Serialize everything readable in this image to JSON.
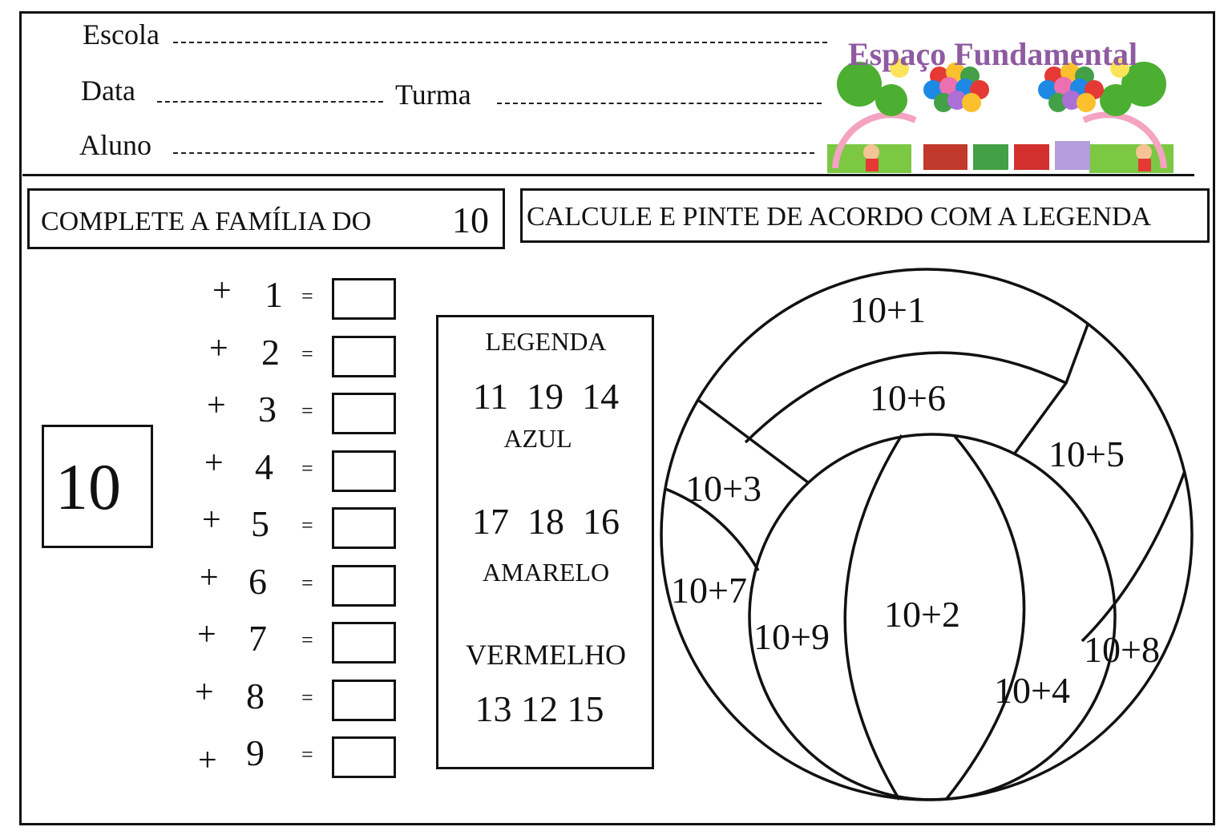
{
  "header": {
    "escola_label": "Escola",
    "data_label": "Data",
    "turma_label": "Turma",
    "aluno_label": "Aluno",
    "logo_text": "Espaço Fundamental"
  },
  "left_section": {
    "title": "COMPLETE A FAMÍLIA DO",
    "title_number": "10",
    "base_number": "10",
    "plus_sign": "+",
    "equals_sign": "=",
    "addends": [
      "1",
      "2",
      "3",
      "4",
      "5",
      "6",
      "7",
      "8",
      "9"
    ]
  },
  "right_section": {
    "title": "CALCULE E PINTE DE ACORDO COM A LEGENDA",
    "legend": {
      "heading": "LEGENDA",
      "groups": [
        {
          "numbers": "11  19  14",
          "color_name": "AZUL",
          "color": "#1e6fd9"
        },
        {
          "numbers": "17  18  16",
          "color_name": "AMARELO",
          "color": "#f2c500"
        },
        {
          "numbers": "13 12 15",
          "color_name": "VERMELHO",
          "color": "#d92020"
        }
      ]
    },
    "ball_sections": [
      "10+1",
      "10+6",
      "10+5",
      "10+3",
      "10+7",
      "10+9",
      "10+2",
      "10+8",
      "10+4"
    ]
  }
}
